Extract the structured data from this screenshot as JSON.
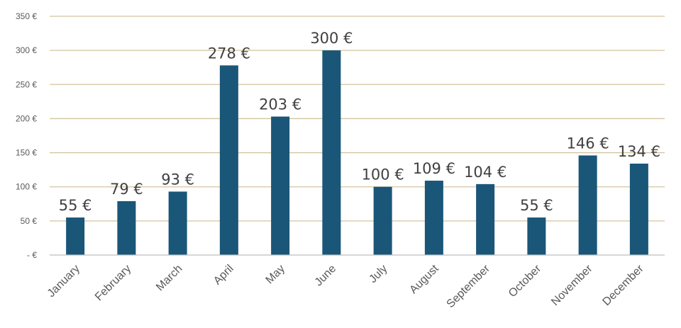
{
  "chart_data": {
    "type": "bar",
    "categories": [
      "January",
      "February",
      "March",
      "April",
      "May",
      "June",
      "July",
      "August",
      "September",
      "October",
      "November",
      "December"
    ],
    "values": [
      55,
      79,
      93,
      278,
      203,
      300,
      100,
      109,
      104,
      55,
      146,
      134
    ],
    "value_labels": [
      "55 €",
      "79 €",
      "93 €",
      "278 €",
      "203 €",
      "300 €",
      "100 €",
      "109 €",
      "104 €",
      "55 €",
      "146 €",
      "134 €"
    ],
    "y_tick_values": [
      0,
      50,
      100,
      150,
      200,
      250,
      300,
      350
    ],
    "y_tick_labels": [
      "-   €",
      "50 €",
      "100 €",
      "150 €",
      "200 €",
      "250 €",
      "300 €",
      "350 €"
    ],
    "ylim": [
      0,
      350
    ],
    "title": "",
    "xlabel": "",
    "ylabel": "",
    "grid": true,
    "legend": "none",
    "colors": {
      "bar": "#1a5678",
      "grid": "#d3c4a0",
      "axis": "#bfbfbf",
      "tick_text": "#595959",
      "label_text": "#404040"
    }
  }
}
